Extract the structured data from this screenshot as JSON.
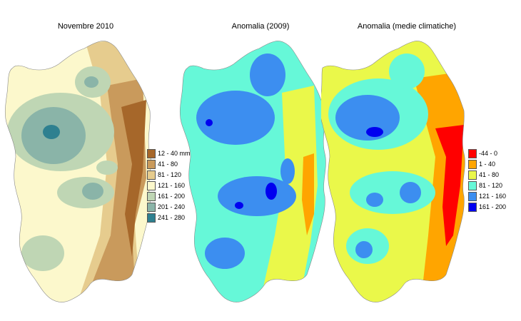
{
  "maps": [
    {
      "title": "Novembre 2010",
      "legend": [
        {
          "label": "12 - 40 mm",
          "color": "#a6672a"
        },
        {
          "label": "41 - 80",
          "color": "#c99a5c"
        },
        {
          "label": "81 - 120",
          "color": "#e6cc8e"
        },
        {
          "label": "121 - 160",
          "color": "#fcf8cc"
        },
        {
          "label": "161 - 200",
          "color": "#bfd6b4"
        },
        {
          "label": "201 - 240",
          "color": "#8ab4a8"
        },
        {
          "label": "241 - 280",
          "color": "#2e8090"
        }
      ]
    },
    {
      "title": "Anomalia (2009)",
      "legend": []
    },
    {
      "title": "Anomalia (medie climatiche)",
      "legend": [
        {
          "label": "-44 - 0",
          "color": "#ff0000"
        },
        {
          "label": "1 - 40",
          "color": "#ffa500"
        },
        {
          "label": "41 - 80",
          "color": "#eaf84a"
        },
        {
          "label": "81 - 120",
          "color": "#66f8d8"
        },
        {
          "label": "121 - 160",
          "color": "#3c8ef0"
        },
        {
          "label": "161 - 200",
          "color": "#0000f0"
        }
      ]
    }
  ]
}
